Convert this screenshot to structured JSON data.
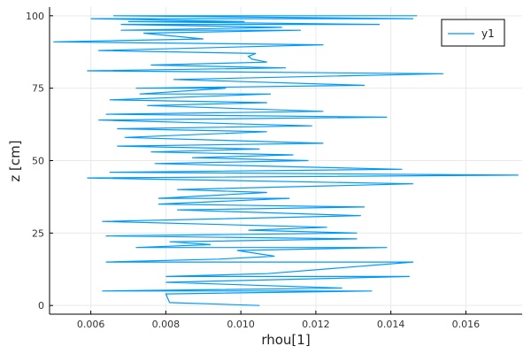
{
  "chart_data": {
    "type": "line",
    "xlabel": "rhou[1]",
    "ylabel": "z [cm]",
    "xlim": [
      0.0049,
      0.0175
    ],
    "ylim": [
      -3,
      103
    ],
    "x_ticks": [
      0.006,
      0.008,
      0.01,
      0.012,
      0.014,
      0.016
    ],
    "x_tick_labels": [
      "0.006",
      "0.008",
      "0.010",
      "0.012",
      "0.014",
      "0.016"
    ],
    "y_ticks": [
      0,
      25,
      50,
      75,
      100
    ],
    "y_tick_labels": [
      "0",
      "25",
      "50",
      "75",
      "100"
    ],
    "grid": true,
    "legend_position": "top-right",
    "series": [
      {
        "name": "y1",
        "color": "#009af9",
        "x": [
          0.0105,
          0.0081,
          0.008,
          0.0135,
          0.0063,
          0.0127,
          0.008,
          0.0145,
          0.008,
          0.0107,
          0.0146,
          0.0064,
          0.0094,
          0.0109,
          0.0099,
          0.0139,
          0.0072,
          0.0092,
          0.0081,
          0.0131,
          0.0064,
          0.0131,
          0.0102,
          0.0123,
          0.0063,
          0.0132,
          0.0083,
          0.0133,
          0.0078,
          0.0113,
          0.0078,
          0.0107,
          0.0083,
          0.0146,
          0.0059,
          0.0174,
          0.0065,
          0.0143,
          0.0077,
          0.0118,
          0.0087,
          0.0114,
          0.0076,
          0.0105,
          0.0067,
          0.0122,
          0.0069,
          0.0107,
          0.0067,
          0.0119,
          0.0062,
          0.0139,
          0.0064,
          0.0122,
          0.0075,
          0.0107,
          0.0065,
          0.0108,
          0.0073,
          0.0096,
          0.0072,
          0.0133,
          0.0082,
          0.0154,
          0.0059,
          0.0112,
          0.0076,
          0.0107,
          0.0103,
          0.0102,
          0.0104,
          0.0062,
          0.0122,
          0.005,
          0.009,
          0.0074,
          0.0116,
          0.0068,
          0.0111,
          0.0068,
          0.0137,
          0.007,
          0.0101,
          0.006,
          0.0146,
          0.0066,
          0.0147
        ],
        "y": [
          0,
          1,
          4,
          5,
          5,
          6,
          8,
          10,
          10,
          11,
          15,
          15,
          16,
          17,
          19,
          20,
          20,
          21,
          22,
          23,
          24,
          25,
          26,
          27,
          29,
          31,
          33,
          34,
          35,
          37,
          37,
          39,
          40,
          42,
          44,
          45,
          46,
          47,
          49,
          50,
          51,
          52,
          53,
          54,
          55,
          56,
          58,
          60,
          61,
          62,
          64,
          65,
          66,
          67,
          69,
          70,
          71,
          73,
          73,
          75,
          75,
          76,
          78,
          80,
          81,
          82,
          83,
          84,
          85,
          86,
          87,
          88,
          90,
          91,
          92,
          94,
          95,
          95,
          96,
          97,
          97,
          98,
          98,
          99,
          99,
          100,
          100
        ]
      }
    ]
  }
}
